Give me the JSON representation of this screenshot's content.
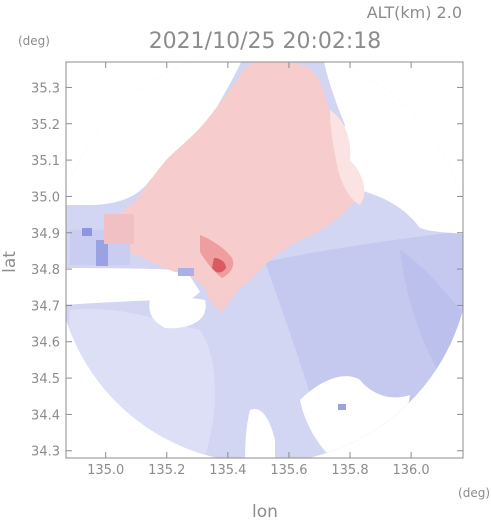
{
  "chart_data": {
    "type": "heatmap",
    "title": "2021/10/25 20:02:18",
    "altitude_label": "ALT(km) 2.0",
    "xlabel": "lon",
    "ylabel": "lat",
    "x_unit": "(deg)",
    "y_unit": "(deg)",
    "xlim": [
      134.87,
      136.17
    ],
    "ylim": [
      34.28,
      35.37
    ],
    "x_ticks": [
      135.0,
      135.2,
      135.4,
      135.6,
      135.8,
      136.0
    ],
    "x_tick_labels": [
      "135.0",
      "135.2",
      "135.4",
      "135.6",
      "135.8",
      "136.0"
    ],
    "y_ticks": [
      34.3,
      34.4,
      34.5,
      34.6,
      34.7,
      34.8,
      34.9,
      35.0,
      35.1,
      35.2,
      35.3
    ],
    "y_tick_labels": [
      "34.3",
      "34.4",
      "34.5",
      "34.6",
      "34.7",
      "34.8",
      "34.9",
      "35.0",
      "35.1",
      "35.2",
      "35.3"
    ],
    "colors": {
      "positive": "#f6c8c8",
      "negative": "#cfd3f2",
      "axis": "#8c8c8c"
    },
    "grid": false,
    "legend": "none"
  }
}
